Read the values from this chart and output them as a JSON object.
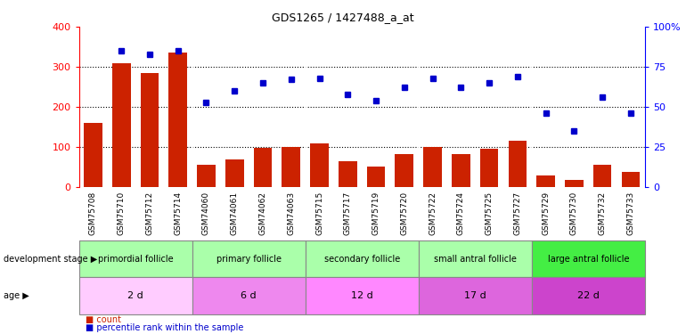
{
  "title": "GDS1265 / 1427488_a_at",
  "samples": [
    "GSM75708",
    "GSM75710",
    "GSM75712",
    "GSM75714",
    "GSM74060",
    "GSM74061",
    "GSM74062",
    "GSM74063",
    "GSM75715",
    "GSM75717",
    "GSM75719",
    "GSM75720",
    "GSM75722",
    "GSM75724",
    "GSM75725",
    "GSM75727",
    "GSM75729",
    "GSM75730",
    "GSM75732",
    "GSM75733"
  ],
  "counts": [
    160,
    310,
    285,
    335,
    55,
    70,
    97,
    101,
    108,
    65,
    52,
    83,
    101,
    83,
    95,
    115,
    30,
    18,
    55,
    38
  ],
  "percentiles": [
    null,
    85,
    83,
    85,
    53,
    60,
    65,
    67,
    68,
    58,
    54,
    62,
    68,
    62,
    65,
    69,
    46,
    35,
    56,
    46
  ],
  "bar_color": "#cc2200",
  "dot_color": "#0000cc",
  "ylim_left": [
    0,
    400
  ],
  "ylim_right": [
    0,
    100
  ],
  "yticks_left": [
    0,
    100,
    200,
    300,
    400
  ],
  "ytick_labels_right": [
    "0",
    "25",
    "50",
    "75",
    "100%"
  ],
  "groups": [
    {
      "label": "primordial follicle",
      "start": 0,
      "end": 4,
      "color": "#aaffaa"
    },
    {
      "label": "primary follicle",
      "start": 4,
      "end": 8,
      "color": "#aaffaa"
    },
    {
      "label": "secondary follicle",
      "start": 8,
      "end": 12,
      "color": "#aaffaa"
    },
    {
      "label": "small antral follicle",
      "start": 12,
      "end": 16,
      "color": "#aaffaa"
    },
    {
      "label": "large antral follicle",
      "start": 16,
      "end": 20,
      "color": "#44ee44"
    }
  ],
  "age_colors": [
    "#ffccff",
    "#ee88ee",
    "#ff88ff",
    "#dd66dd",
    "#cc44cc"
  ],
  "ages": [
    {
      "label": "2 d",
      "start": 0,
      "end": 4
    },
    {
      "label": "6 d",
      "start": 4,
      "end": 8
    },
    {
      "label": "12 d",
      "start": 8,
      "end": 12
    },
    {
      "label": "17 d",
      "start": 12,
      "end": 16
    },
    {
      "label": "22 d",
      "start": 16,
      "end": 20
    }
  ],
  "legend_count_label": "count",
  "legend_pct_label": "percentile rank within the sample",
  "dev_stage_label": "development stage",
  "age_label": "age",
  "background_color": "#ffffff",
  "tick_area_color": "#cccccc",
  "group_boundary_color": "#888888"
}
